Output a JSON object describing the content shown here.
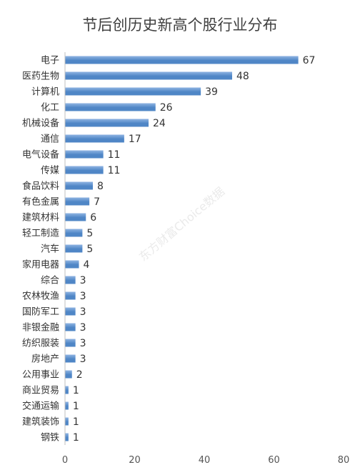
{
  "chart_data": {
    "type": "bar",
    "orientation": "horizontal",
    "title": "节后创历史新高个股行业分布",
    "categories": [
      "电子",
      "医药生物",
      "计算机",
      "化工",
      "机械设备",
      "通信",
      "电气设备",
      "传媒",
      "食品饮料",
      "有色金属",
      "建筑材料",
      "轻工制造",
      "汽车",
      "家用电器",
      "综合",
      "农林牧渔",
      "国防军工",
      "非银金融",
      "纺织服装",
      "房地产",
      "公用事业",
      "商业贸易",
      "交通运输",
      "建筑装饰",
      "钢铁"
    ],
    "values": [
      67,
      48,
      39,
      26,
      24,
      17,
      11,
      11,
      8,
      7,
      6,
      5,
      5,
      4,
      3,
      3,
      3,
      3,
      3,
      3,
      2,
      1,
      1,
      1,
      1
    ],
    "xlim": [
      0,
      80
    ],
    "xticks": [
      0,
      20,
      40,
      60,
      80
    ],
    "xlabel": "",
    "ylabel": "",
    "grid": false,
    "legend": "none",
    "bar_color": "#4f86c6",
    "bar_color_light": "#8fb4e3",
    "watermark": "东方财富Choice数据"
  }
}
